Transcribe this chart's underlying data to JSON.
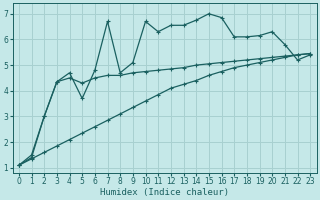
{
  "xlabel": "Humidex (Indice chaleur)",
  "bg_color": "#c5e8e8",
  "grid_color": "#a8d0d0",
  "line_color": "#1a6060",
  "ylim": [
    0.8,
    7.4
  ],
  "xlim": [
    -0.5,
    23.5
  ],
  "yticks": [
    1,
    2,
    3,
    4,
    5,
    6,
    7
  ],
  "xticks": [
    0,
    1,
    2,
    3,
    4,
    5,
    6,
    7,
    8,
    9,
    10,
    11,
    12,
    13,
    14,
    15,
    16,
    17,
    18,
    19,
    20,
    21,
    22,
    23
  ],
  "line1_x": [
    0,
    1,
    2,
    3,
    4,
    5,
    6,
    7,
    8,
    9,
    10,
    11,
    12,
    13,
    14,
    15,
    16,
    17,
    18,
    19,
    20,
    21,
    22,
    23
  ],
  "line1_y": [
    1.1,
    1.4,
    3.0,
    4.35,
    4.7,
    3.7,
    4.8,
    6.7,
    4.7,
    5.1,
    6.7,
    6.3,
    6.55,
    6.55,
    6.75,
    7.0,
    6.85,
    6.1,
    6.1,
    6.15,
    6.3,
    5.8,
    5.2,
    5.4
  ],
  "line2_x": [
    0,
    1,
    2,
    3,
    4,
    5,
    6,
    7,
    8,
    9,
    10,
    11,
    12,
    13,
    14,
    15,
    16,
    17,
    18,
    19,
    20,
    21,
    22,
    23
  ],
  "line2_y": [
    1.1,
    1.5,
    3.0,
    4.35,
    4.5,
    4.3,
    4.5,
    4.6,
    4.6,
    4.7,
    4.75,
    4.8,
    4.85,
    4.9,
    5.0,
    5.05,
    5.1,
    5.15,
    5.2,
    5.25,
    5.3,
    5.35,
    5.4,
    5.45
  ],
  "line3_x": [
    0,
    1,
    2,
    3,
    4,
    5,
    6,
    7,
    8,
    9,
    10,
    11,
    12,
    13,
    14,
    15,
    16,
    17,
    18,
    19,
    20,
    21,
    22,
    23
  ],
  "line3_y": [
    1.1,
    1.35,
    1.6,
    1.85,
    2.1,
    2.35,
    2.6,
    2.85,
    3.1,
    3.35,
    3.6,
    3.85,
    4.1,
    4.25,
    4.4,
    4.6,
    4.75,
    4.9,
    5.0,
    5.1,
    5.2,
    5.3,
    5.4,
    5.45
  ]
}
